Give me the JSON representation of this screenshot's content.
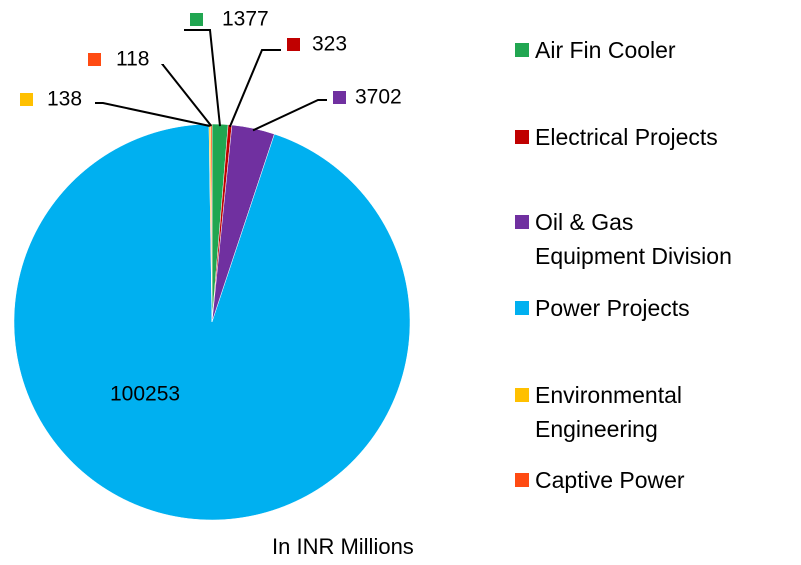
{
  "chart_data": {
    "type": "pie",
    "caption": "In INR  Millions",
    "categories": [
      "Air Fin Cooler",
      "Electrical Projects",
      "Oil & Gas\nEquipment Division",
      "Power Projects",
      "Environmental\nEngineering",
      "Captive Power"
    ],
    "values": [
      1377,
      323,
      3702,
      100253,
      138,
      118
    ],
    "colors": [
      "#21a651",
      "#c00000",
      "#7030a0",
      "#00b0f0",
      "#ffc000",
      "#ff4b12"
    ]
  }
}
